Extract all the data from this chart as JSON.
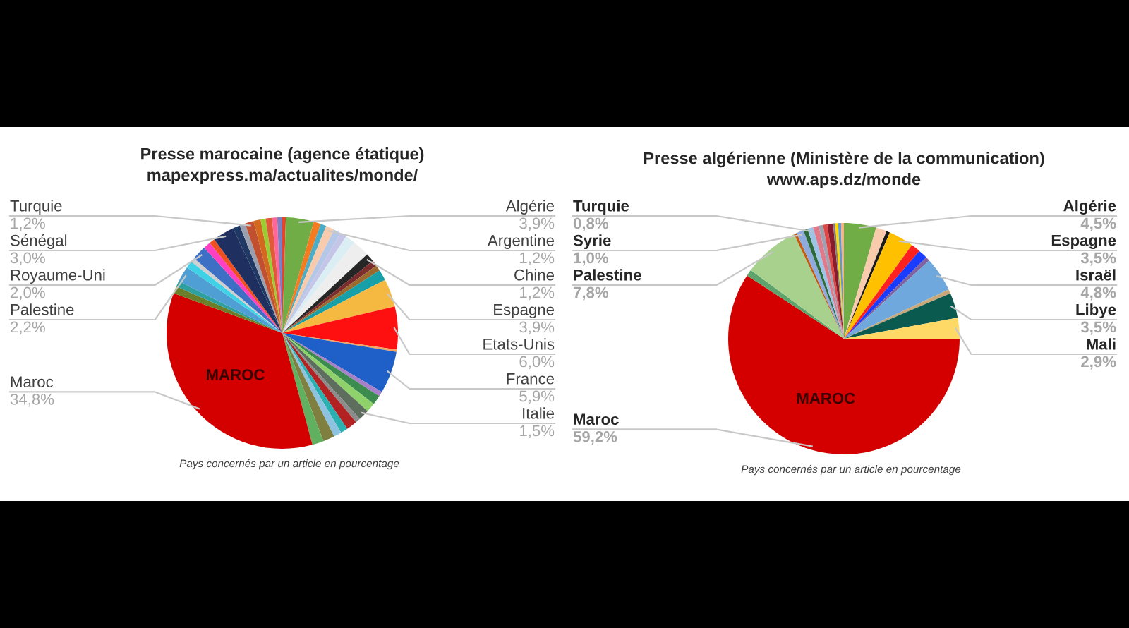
{
  "chart_data": [
    {
      "type": "pie",
      "title": "Presse marocaine (agence étatique)",
      "subtitle": "mapexpress.ma/actualites/monde/",
      "categories": [
        null,
        "Algérie",
        null,
        null,
        "Argentine",
        null,
        null,
        null,
        null,
        "Chine",
        null,
        null,
        null,
        "Espagne",
        "Etats-Unis",
        null,
        "France",
        null,
        null,
        null,
        "Italie",
        null,
        null,
        null,
        null,
        null,
        null,
        "Maroc",
        null,
        null,
        "Palestine",
        null,
        null,
        "Royaume-Uni",
        null,
        null,
        "Sénégal",
        null,
        null,
        "Turquie",
        null,
        null,
        null,
        null,
        null
      ],
      "values": [
        0.5,
        3.9,
        1.0,
        0.8,
        1.2,
        1.0,
        0.9,
        1.4,
        2.4,
        1.2,
        0.8,
        0.8,
        1.5,
        3.9,
        6.0,
        0.3,
        5.9,
        0.7,
        1.3,
        1.3,
        1.5,
        0.7,
        1.5,
        1.0,
        1.1,
        1.6,
        1.6,
        34.8,
        1.0,
        0.8,
        2.2,
        1.0,
        0.6,
        2.0,
        1.0,
        0.8,
        3.0,
        1.0,
        0.8,
        1.2,
        1.0,
        0.7,
        0.9,
        0.7,
        0.7
      ],
      "colors": [
        "#e8412c",
        "#70ad47",
        "#f47b20",
        "#4bacc6",
        "#f8cbad",
        "#b4c7e7",
        "#c5c5e8",
        "#dbeef4",
        "#eeeeee",
        "#262626",
        "#7b2c2c",
        "#9c6a2e",
        "#17a0a8",
        "#f5b942",
        "#ff1010",
        "#f4a460",
        "#1f5fc8",
        "#a680c8",
        "#3c8c50",
        "#8fd16a",
        "#5e6e5e",
        "#8c8c8c",
        "#b22222",
        "#2ab0b0",
        "#8ec3e0",
        "#7f7f3f",
        "#60b060",
        "#d40000",
        "#6b7f2a",
        "#2ea0a0",
        "#4f9fd5",
        "#3fd2e6",
        "#d0d0d0",
        "#3d6fc4",
        "#ff40c0",
        "#f05020",
        "#1f3060",
        "#203864",
        "#9aa0b0",
        "#c05030",
        "#d2691e",
        "#9acd32",
        "#e05a3a",
        "#ff6699",
        "#7f7fbf"
      ],
      "value_labels": [
        null,
        "3,9%",
        null,
        null,
        "1,2%",
        null,
        null,
        null,
        null,
        "1,2%",
        null,
        null,
        null,
        "3,9%",
        "6,0%",
        null,
        "5,9%",
        null,
        null,
        null,
        "1,5%",
        null,
        null,
        null,
        null,
        null,
        null,
        "34,8%",
        null,
        null,
        "2,2%",
        null,
        null,
        "2,0%",
        null,
        null,
        "3,0%",
        null,
        null,
        "1,2%",
        null,
        null,
        null,
        null,
        null
      ],
      "annotations": [
        "MAROC",
        "Pays concernés par un article en pourcentage"
      ]
    },
    {
      "type": "pie",
      "title": "Presse algérienne (Ministère de la communication)",
      "subtitle": "www.aps.dz/monde",
      "categories": [
        "Algérie",
        null,
        null,
        "Espagne",
        null,
        null,
        null,
        "Israël",
        null,
        "Libye",
        "Mali",
        "Maroc",
        null,
        "Palestine",
        null,
        "Syrie",
        null,
        "Turquie",
        null,
        null,
        null,
        null,
        null,
        null,
        null,
        null
      ],
      "values": [
        4.5,
        1.5,
        0.5,
        3.5,
        1.3,
        1.3,
        0.6,
        4.8,
        0.6,
        3.5,
        2.9,
        59.2,
        0.9,
        7.8,
        0.4,
        1.0,
        0.6,
        0.8,
        0.8,
        0.6,
        0.6,
        0.8,
        0.3,
        0.4,
        0.4,
        0.4
      ],
      "colors": [
        "#70ad47",
        "#f8cbad",
        "#1a1a1a",
        "#ffc000",
        "#ff2020",
        "#1a3cff",
        "#8064a2",
        "#6fa8dc",
        "#c9a97a",
        "#0b5a50",
        "#ffd966",
        "#d40000",
        "#5ea36b",
        "#a9d18e",
        "#c55a11",
        "#8faadc",
        "#2e6b3a",
        "#9dc3e6",
        "#e07a8a",
        "#a0a0b0",
        "#e04848",
        "#8b1a2a",
        "#7f7f7f",
        "#ffd700",
        "#5b9bd5",
        "#f4b183"
      ],
      "value_labels": [
        "4,5%",
        null,
        null,
        "3,5%",
        null,
        null,
        null,
        "4,8%",
        null,
        "3,5%",
        "2,9%",
        "59,2%",
        null,
        "7,8%",
        null,
        "1,0%",
        null,
        "0,8%",
        null,
        null,
        null,
        null,
        null,
        null,
        null,
        null
      ],
      "annotations": [
        "MAROC",
        "Pays concernés par un article en pourcentage"
      ]
    }
  ]
}
